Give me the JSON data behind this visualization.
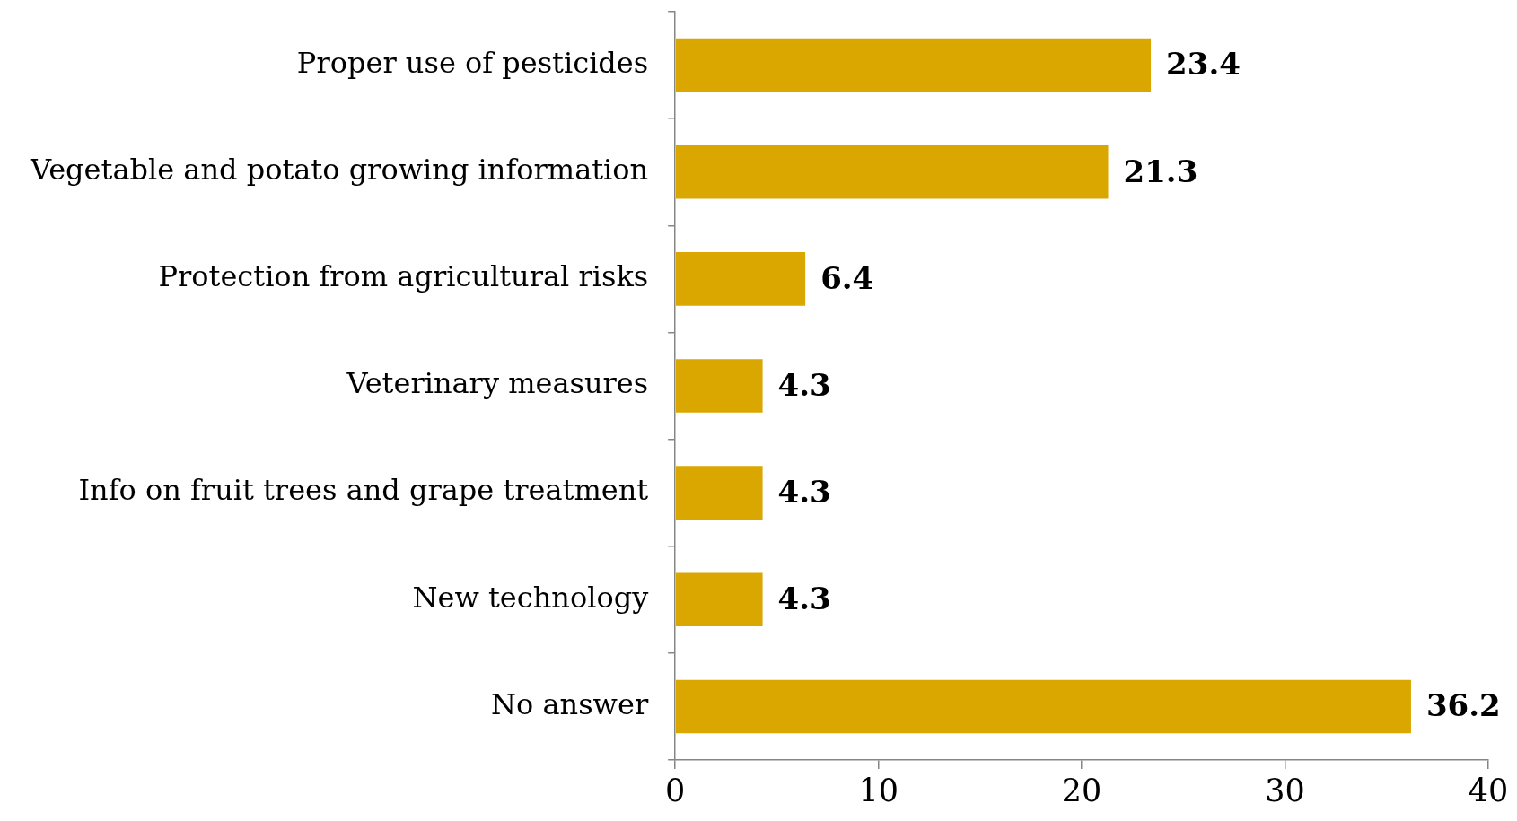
{
  "chart_data": {
    "type": "bar",
    "orientation": "horizontal",
    "categories": [
      "Proper use of pesticides",
      "Vegetable and potato growing information",
      "Protection from agricultural risks",
      "Veterinary measures",
      "Info on fruit trees and grape treatment",
      "New technology",
      "No answer"
    ],
    "values": [
      23.4,
      21.3,
      6.4,
      4.3,
      4.3,
      4.3,
      36.2
    ],
    "color": "#d9a700",
    "xlim": [
      0,
      40
    ],
    "xticks": [
      0,
      10,
      20,
      30,
      40
    ],
    "data_labels": true,
    "grid": false
  }
}
